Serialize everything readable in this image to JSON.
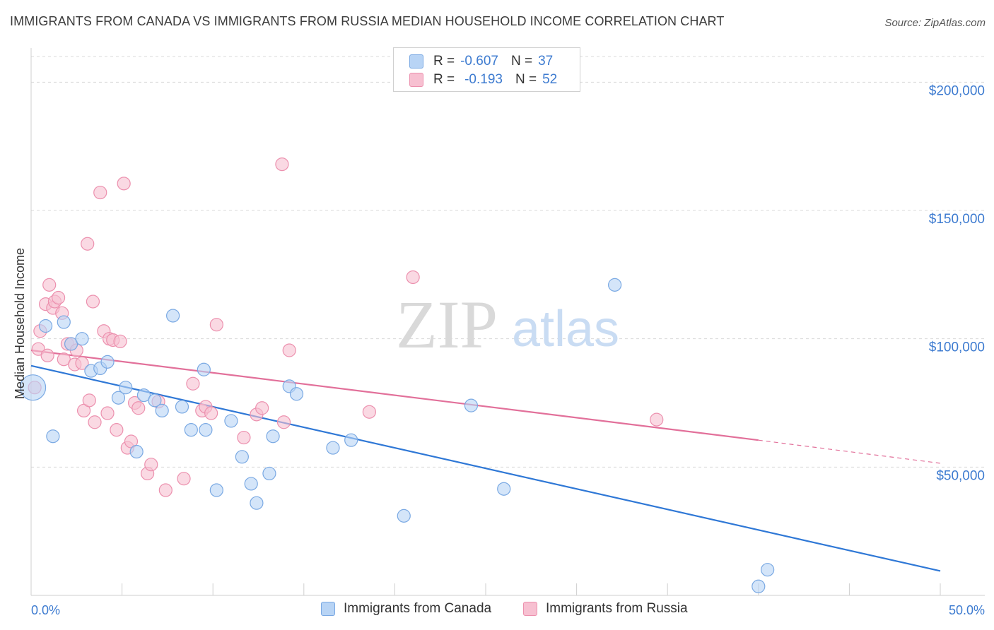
{
  "header": {
    "title": "IMMIGRANTS FROM CANADA VS IMMIGRANTS FROM RUSSIA MEDIAN HOUSEHOLD INCOME CORRELATION CHART",
    "source": "Source: ZipAtlas.com"
  },
  "watermark": {
    "zip": "ZIP",
    "atlas": "atlas"
  },
  "legend_top": {
    "rows": [
      {
        "r_label": "R =",
        "r_value": "-0.607",
        "n_label": "N =",
        "n_value": "37"
      },
      {
        "r_label": "R =",
        "r_value": "-0.193",
        "n_label": "N =",
        "n_value": "52"
      }
    ]
  },
  "legend_bottom": {
    "items": [
      {
        "label": "Immigrants from Canada"
      },
      {
        "label": "Immigrants from Russia"
      }
    ]
  },
  "colors": {
    "canada_fill": "#b8d4f5",
    "canada_stroke": "#7aa9e3",
    "canada_line": "#2f78d6",
    "russia_fill": "#f7c0d1",
    "russia_stroke": "#ec90ae",
    "russia_line": "#e2709a",
    "tick_text": "#3d7bd0",
    "grid": "#d8d8d8"
  },
  "chart_data": {
    "type": "scatter",
    "title": "IMMIGRANTS FROM CANADA VS IMMIGRANTS FROM RUSSIA MEDIAN HOUSEHOLD INCOME CORRELATION CHART",
    "xlabel": "",
    "ylabel": "Median Household Income",
    "xlim": [
      0,
      50
    ],
    "ylim": [
      0,
      210000
    ],
    "x_tick_labels": [
      "0.0%",
      "50.0%"
    ],
    "y_ticks": [
      50000,
      100000,
      150000,
      200000
    ],
    "y_tick_labels": [
      "$50,000",
      "$100,000",
      "$150,000",
      "$200,000"
    ],
    "grid": "horizontal dashed",
    "legend": "top-center and bottom",
    "series": [
      {
        "name": "Immigrants from Canada",
        "r": -0.607,
        "n": 37,
        "trend": {
          "x": [
            0,
            50
          ],
          "y": [
            89500,
            9500
          ]
        },
        "points": [
          [
            0.1,
            81000
          ],
          [
            0.8,
            105000
          ],
          [
            1.8,
            106500
          ],
          [
            2.2,
            98000
          ],
          [
            2.8,
            100000
          ],
          [
            3.3,
            87500
          ],
          [
            3.8,
            88500
          ],
          [
            4.2,
            91000
          ],
          [
            4.8,
            77000
          ],
          [
            5.2,
            81000
          ],
          [
            5.8,
            56000
          ],
          [
            6.2,
            78000
          ],
          [
            6.8,
            76000
          ],
          [
            7.2,
            72000
          ],
          [
            7.8,
            109000
          ],
          [
            8.3,
            73500
          ],
          [
            8.8,
            64500
          ],
          [
            9.5,
            88000
          ],
          [
            9.6,
            64500
          ],
          [
            10.2,
            41000
          ],
          [
            11.0,
            68000
          ],
          [
            11.6,
            54000
          ],
          [
            12.1,
            43500
          ],
          [
            12.4,
            36000
          ],
          [
            13.1,
            47500
          ],
          [
            13.3,
            62000
          ],
          [
            14.2,
            81500
          ],
          [
            14.6,
            78500
          ],
          [
            16.6,
            57500
          ],
          [
            17.6,
            60500
          ],
          [
            20.5,
            31000
          ],
          [
            24.2,
            74000
          ],
          [
            26.0,
            41500
          ],
          [
            32.1,
            121000
          ],
          [
            40.0,
            3500
          ],
          [
            40.5,
            10000
          ],
          [
            1.2,
            62000
          ]
        ]
      },
      {
        "name": "Immigrants from Russia",
        "r": -0.193,
        "n": 52,
        "trend": {
          "x": [
            0,
            40.0
          ],
          "y": [
            95500,
            60500
          ],
          "dash_to": [
            50,
            51500
          ]
        },
        "points": [
          [
            0.2,
            81000
          ],
          [
            0.4,
            96000
          ],
          [
            0.5,
            103000
          ],
          [
            0.8,
            113500
          ],
          [
            0.9,
            93500
          ],
          [
            1.0,
            121000
          ],
          [
            1.2,
            112000
          ],
          [
            1.3,
            114500
          ],
          [
            1.5,
            116000
          ],
          [
            1.7,
            110000
          ],
          [
            1.8,
            92000
          ],
          [
            2.0,
            98000
          ],
          [
            2.2,
            98000
          ],
          [
            2.4,
            90000
          ],
          [
            2.5,
            95500
          ],
          [
            2.8,
            90500
          ],
          [
            2.9,
            72000
          ],
          [
            3.1,
            137000
          ],
          [
            3.2,
            76000
          ],
          [
            3.4,
            114500
          ],
          [
            3.5,
            67500
          ],
          [
            3.8,
            157000
          ],
          [
            4.0,
            103000
          ],
          [
            4.2,
            71000
          ],
          [
            4.3,
            100000
          ],
          [
            4.5,
            99500
          ],
          [
            4.7,
            64500
          ],
          [
            4.9,
            99000
          ],
          [
            5.1,
            160500
          ],
          [
            5.3,
            57500
          ],
          [
            5.5,
            60000
          ],
          [
            5.7,
            75000
          ],
          [
            5.9,
            73000
          ],
          [
            6.4,
            47500
          ],
          [
            6.6,
            51000
          ],
          [
            7.0,
            75500
          ],
          [
            7.4,
            41000
          ],
          [
            8.4,
            45500
          ],
          [
            8.9,
            82500
          ],
          [
            9.4,
            72000
          ],
          [
            9.6,
            73500
          ],
          [
            9.9,
            71000
          ],
          [
            10.2,
            105500
          ],
          [
            11.7,
            61500
          ],
          [
            12.4,
            70500
          ],
          [
            12.7,
            73000
          ],
          [
            13.8,
            168000
          ],
          [
            13.9,
            67500
          ],
          [
            14.2,
            95500
          ],
          [
            18.6,
            71500
          ],
          [
            21.0,
            124000
          ],
          [
            34.4,
            68500
          ]
        ]
      }
    ]
  }
}
